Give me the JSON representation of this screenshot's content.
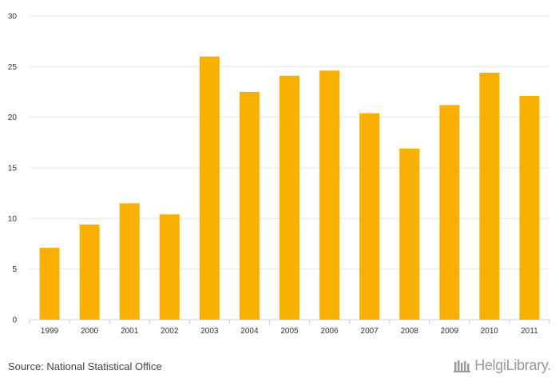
{
  "chart_data": {
    "type": "bar",
    "categories": [
      "1999",
      "2000",
      "2001",
      "2002",
      "2003",
      "2004",
      "2005",
      "2006",
      "2007",
      "2008",
      "2009",
      "2010",
      "2011"
    ],
    "values": [
      7.1,
      9.4,
      11.5,
      10.4,
      26.0,
      22.5,
      24.1,
      24.6,
      20.4,
      16.9,
      21.2,
      24.4,
      22.1
    ],
    "ylim": [
      0,
      30
    ],
    "yticks": [
      0,
      5,
      10,
      15,
      20,
      25,
      30
    ],
    "title": "",
    "xlabel": "",
    "ylabel": "",
    "grid": true,
    "bar_color": "#f9b000"
  },
  "footer": {
    "source": "Source: National Statistical Office",
    "logo_text": "HelgiLibrary."
  },
  "colors": {
    "grid": "#e6e6e6",
    "axis": "#cccccc",
    "logo": "#9a9a9a"
  }
}
